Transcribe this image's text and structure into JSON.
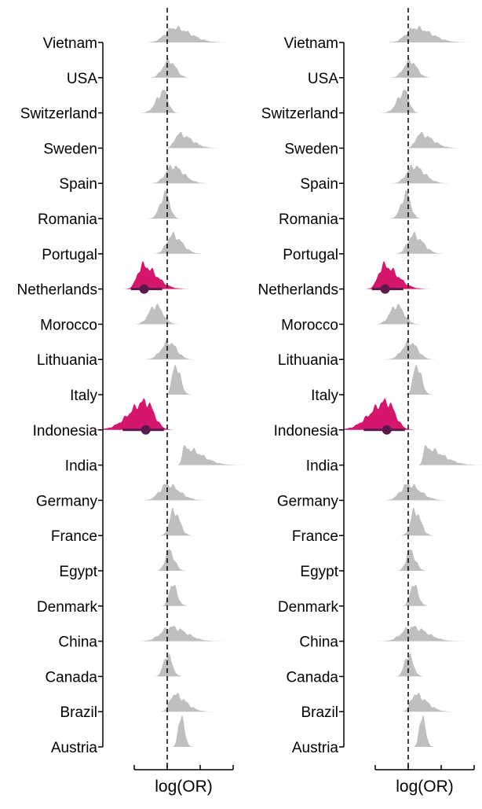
{
  "chart_data": [
    {
      "type": "ridgeline",
      "panel": "left",
      "xlabel": "log(OR)",
      "ylabel": "",
      "title": "",
      "reference_line": {
        "x": 0,
        "style": "dashed"
      },
      "xlim": [
        -1,
        2
      ],
      "x_ticks": [
        -1,
        0,
        1,
        2
      ],
      "x_tick_labels_shown": false,
      "categories": [
        "Vietnam",
        "USA",
        "Switzerland",
        "Sweden",
        "Spain",
        "Romania",
        "Portugal",
        "Netherlands",
        "Morocco",
        "Lithuania",
        "Italy",
        "Indonesia",
        "India",
        "Germany",
        "France",
        "Egypt",
        "Denmark",
        "China",
        "Canada",
        "Brazil",
        "Austria"
      ],
      "highlighted": [
        "Netherlands",
        "Indonesia"
      ],
      "colors": {
        "default": "#bfbfbf",
        "highlight": "#d6156c",
        "highlight_point": "#5a1a4f"
      },
      "series": [
        {
          "name": "Vietnam",
          "center": 0.2,
          "spread_left": 0.9,
          "spread_right": 1.7,
          "peak": 0.47,
          "highlight": false
        },
        {
          "name": "USA",
          "center": 0.05,
          "spread_left": 0.65,
          "spread_right": 0.7,
          "peak": 0.55,
          "highlight": false
        },
        {
          "name": "Switzerland",
          "center": -0.1,
          "spread_left": 0.75,
          "spread_right": 0.45,
          "peak": 0.7,
          "highlight": false
        },
        {
          "name": "Sweden",
          "center": 0.35,
          "spread_left": 0.45,
          "spread_right": 1.3,
          "peak": 0.45,
          "highlight": false
        },
        {
          "name": "Spain",
          "center": 0.15,
          "spread_left": 0.7,
          "spread_right": 1.15,
          "peak": 0.55,
          "highlight": false
        },
        {
          "name": "Romania",
          "center": -0.05,
          "spread_left": 0.55,
          "spread_right": 0.45,
          "peak": 0.8,
          "highlight": false
        },
        {
          "name": "Portugal",
          "center": 0.15,
          "spread_left": 0.6,
          "spread_right": 1.0,
          "peak": 0.6,
          "highlight": false
        },
        {
          "name": "Netherlands",
          "center": -0.75,
          "spread_left": 0.55,
          "spread_right": 1.4,
          "peak": 0.75,
          "highlight": true,
          "point": -0.7,
          "interval": [
            -1.1,
            -0.15
          ]
        },
        {
          "name": "Morocco",
          "center": -0.35,
          "spread_left": 0.7,
          "spread_right": 0.75,
          "peak": 0.6,
          "highlight": false
        },
        {
          "name": "Lithuania",
          "center": 0.05,
          "spread_left": 0.8,
          "spread_right": 0.8,
          "peak": 0.55,
          "highlight": false
        },
        {
          "name": "Italy",
          "center": 0.25,
          "spread_left": 0.35,
          "spread_right": 0.5,
          "peak": 0.95,
          "highlight": false
        },
        {
          "name": "Indonesia",
          "center": -0.65,
          "spread_left": 1.7,
          "spread_right": 0.85,
          "peak": 0.9,
          "highlight": true,
          "point": -0.65,
          "interval": [
            -1.35,
            -0.1
          ]
        },
        {
          "name": "India",
          "center": 0.5,
          "spread_left": 0.2,
          "spread_right": 1.8,
          "peak": 0.55,
          "highlight": false
        },
        {
          "name": "Germany",
          "center": 0.0,
          "spread_left": 0.8,
          "spread_right": 1.25,
          "peak": 0.5,
          "highlight": false
        },
        {
          "name": "France",
          "center": 0.2,
          "spread_left": 0.45,
          "spread_right": 0.6,
          "peak": 0.8,
          "highlight": false
        },
        {
          "name": "Egypt",
          "center": 0.05,
          "spread_left": 0.4,
          "spread_right": 0.55,
          "peak": 0.65,
          "highlight": false
        },
        {
          "name": "Denmark",
          "center": 0.15,
          "spread_left": 0.35,
          "spread_right": 0.5,
          "peak": 0.7,
          "highlight": false
        },
        {
          "name": "China",
          "center": 0.1,
          "spread_left": 1.0,
          "spread_right": 1.6,
          "peak": 0.45,
          "highlight": false
        },
        {
          "name": "Canada",
          "center": 0.0,
          "spread_left": 0.4,
          "spread_right": 0.5,
          "peak": 0.7,
          "highlight": false
        },
        {
          "name": "Brazil",
          "center": 0.2,
          "spread_left": 0.45,
          "spread_right": 1.2,
          "peak": 0.55,
          "highlight": false
        },
        {
          "name": "Austria",
          "center": 0.4,
          "spread_left": 0.25,
          "spread_right": 0.4,
          "peak": 1.0,
          "highlight": false
        }
      ]
    },
    {
      "type": "ridgeline",
      "panel": "right",
      "xlabel": "log(OR)",
      "ylabel": "",
      "title": "",
      "reference_line": {
        "x": 0,
        "style": "dashed"
      },
      "xlim": [
        -1,
        2
      ],
      "x_ticks": [
        -1,
        0,
        1,
        2
      ],
      "x_tick_labels_shown": false,
      "categories": [
        "Vietnam",
        "USA",
        "Switzerland",
        "Sweden",
        "Spain",
        "Romania",
        "Portugal",
        "Netherlands",
        "Morocco",
        "Lithuania",
        "Italy",
        "Indonesia",
        "India",
        "Germany",
        "France",
        "Egypt",
        "Denmark",
        "China",
        "Canada",
        "Brazil",
        "Austria"
      ],
      "highlighted": [
        "Netherlands",
        "Indonesia"
      ],
      "colors": {
        "default": "#bfbfbf",
        "highlight": "#d6156c",
        "highlight_point": "#5a1a4f"
      },
      "series": [
        {
          "name": "Vietnam",
          "center": 0.2,
          "spread_left": 0.9,
          "spread_right": 1.7,
          "peak": 0.47,
          "highlight": false
        },
        {
          "name": "USA",
          "center": 0.05,
          "spread_left": 0.65,
          "spread_right": 0.7,
          "peak": 0.55,
          "highlight": false
        },
        {
          "name": "Switzerland",
          "center": -0.1,
          "spread_left": 0.75,
          "spread_right": 0.45,
          "peak": 0.7,
          "highlight": false
        },
        {
          "name": "Sweden",
          "center": 0.35,
          "spread_left": 0.45,
          "spread_right": 1.3,
          "peak": 0.45,
          "highlight": false
        },
        {
          "name": "Spain",
          "center": 0.15,
          "spread_left": 0.7,
          "spread_right": 1.15,
          "peak": 0.55,
          "highlight": false
        },
        {
          "name": "Romania",
          "center": -0.05,
          "spread_left": 0.55,
          "spread_right": 0.45,
          "peak": 0.8,
          "highlight": false
        },
        {
          "name": "Portugal",
          "center": 0.15,
          "spread_left": 0.6,
          "spread_right": 1.0,
          "peak": 0.6,
          "highlight": false
        },
        {
          "name": "Netherlands",
          "center": -0.75,
          "spread_left": 0.55,
          "spread_right": 1.4,
          "peak": 0.75,
          "highlight": true,
          "point": -0.7,
          "interval": [
            -1.1,
            -0.15
          ]
        },
        {
          "name": "Morocco",
          "center": -0.35,
          "spread_left": 0.7,
          "spread_right": 0.75,
          "peak": 0.6,
          "highlight": false
        },
        {
          "name": "Lithuania",
          "center": 0.05,
          "spread_left": 0.8,
          "spread_right": 0.8,
          "peak": 0.55,
          "highlight": false
        },
        {
          "name": "Italy",
          "center": 0.25,
          "spread_left": 0.35,
          "spread_right": 0.5,
          "peak": 0.95,
          "highlight": false
        },
        {
          "name": "Indonesia",
          "center": -0.65,
          "spread_left": 1.7,
          "spread_right": 0.85,
          "peak": 0.9,
          "highlight": true,
          "point": -0.65,
          "interval": [
            -1.35,
            -0.1
          ]
        },
        {
          "name": "India",
          "center": 0.5,
          "spread_left": 0.2,
          "spread_right": 1.8,
          "peak": 0.55,
          "highlight": false
        },
        {
          "name": "Germany",
          "center": 0.0,
          "spread_left": 0.8,
          "spread_right": 1.25,
          "peak": 0.5,
          "highlight": false
        },
        {
          "name": "France",
          "center": 0.2,
          "spread_left": 0.45,
          "spread_right": 0.6,
          "peak": 0.8,
          "highlight": false
        },
        {
          "name": "Egypt",
          "center": 0.05,
          "spread_left": 0.4,
          "spread_right": 0.55,
          "peak": 0.65,
          "highlight": false
        },
        {
          "name": "Denmark",
          "center": 0.15,
          "spread_left": 0.35,
          "spread_right": 0.5,
          "peak": 0.7,
          "highlight": false
        },
        {
          "name": "China",
          "center": 0.1,
          "spread_left": 1.0,
          "spread_right": 1.6,
          "peak": 0.45,
          "highlight": false
        },
        {
          "name": "Canada",
          "center": 0.0,
          "spread_left": 0.4,
          "spread_right": 0.5,
          "peak": 0.7,
          "highlight": false
        },
        {
          "name": "Brazil",
          "center": 0.2,
          "spread_left": 0.45,
          "spread_right": 1.2,
          "peak": 0.55,
          "highlight": false
        },
        {
          "name": "Austria",
          "center": 0.4,
          "spread_left": 0.25,
          "spread_right": 0.4,
          "peak": 1.0,
          "highlight": false
        }
      ]
    }
  ]
}
